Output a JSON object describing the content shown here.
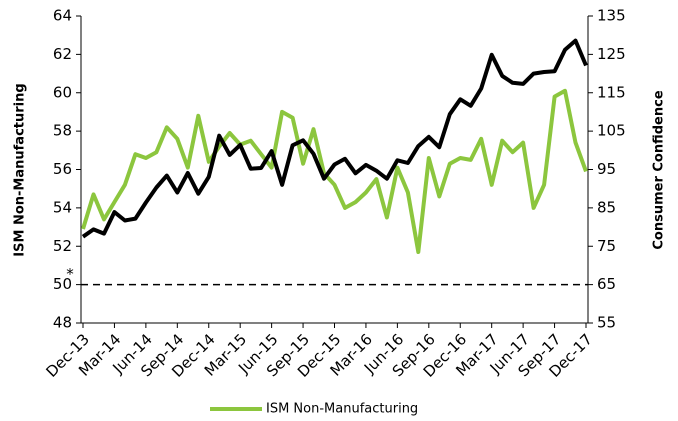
{
  "chart_data": {
    "type": "line",
    "y_label": "ISM Non-Manufacturing",
    "y2_label": "Consumer Confidence",
    "categories": [
      "Dec-13",
      null,
      null,
      "Mar-14",
      null,
      null,
      "Jun-14",
      null,
      null,
      "Sep-14",
      null,
      null,
      "Dec-14",
      null,
      null,
      "Mar-15",
      null,
      null,
      "Jun-15",
      null,
      null,
      "Sep-15",
      null,
      null,
      "Dec-15",
      null,
      null,
      "Mar-16",
      null,
      null,
      "Jun-16",
      null,
      null,
      "Sep-16",
      null,
      null,
      "Dec-16",
      null,
      null,
      "Mar-17",
      null,
      null,
      "Jun-17",
      null,
      null,
      "Sep-17",
      null,
      null,
      "Dec-17"
    ],
    "series": [
      {
        "name": "ISM Non-Manufacturing",
        "color": "#8cc63e",
        "axis": "y",
        "values": [
          52.9,
          54.7,
          53.4,
          54.3,
          55.2,
          56.8,
          56.6,
          56.9,
          58.2,
          57.6,
          56.1,
          58.8,
          56.4,
          57.2,
          57.9,
          57.3,
          57.5,
          56.8,
          56.1,
          59.0,
          58.7,
          56.3,
          58.1,
          55.8,
          55.2,
          54.0,
          54.3,
          54.8,
          55.5,
          53.5,
          56.1,
          54.8,
          51.7,
          56.6,
          54.6,
          56.3,
          56.6,
          56.5,
          57.6,
          55.2,
          57.5,
          56.9,
          57.4,
          54.0,
          55.2,
          59.8,
          60.1,
          57.4,
          55.9
        ]
      },
      {
        "color": "#000000",
        "axis": "y2",
        "values": [
          77.5,
          79.4,
          78.3,
          83.9,
          81.7,
          82.2,
          86.4,
          90.3,
          93.4,
          89.0,
          94.1,
          88.7,
          93.1,
          103.8,
          98.8,
          101.4,
          95.2,
          95.4,
          99.8,
          91.0,
          101.3,
          102.6,
          99.1,
          92.6,
          96.3,
          97.8,
          94.0,
          96.2,
          94.7,
          92.6,
          97.4,
          96.7,
          101.1,
          103.5,
          100.8,
          109.4,
          113.3,
          111.6,
          116.1,
          124.9,
          119.4,
          117.6,
          117.3,
          120.0,
          120.4,
          120.6,
          126.2,
          128.6,
          122.1
        ]
      }
    ],
    "ylim": [
      48,
      64
    ],
    "yticks": [
      48,
      50,
      52,
      54,
      56,
      58,
      60,
      62,
      64
    ],
    "y2lim": [
      55,
      135
    ],
    "y2ticks": [
      55,
      65,
      75,
      85,
      95,
      105,
      115,
      125,
      135
    ],
    "reference_line": 50,
    "reference_annotation": "*",
    "legend": "bottom"
  }
}
